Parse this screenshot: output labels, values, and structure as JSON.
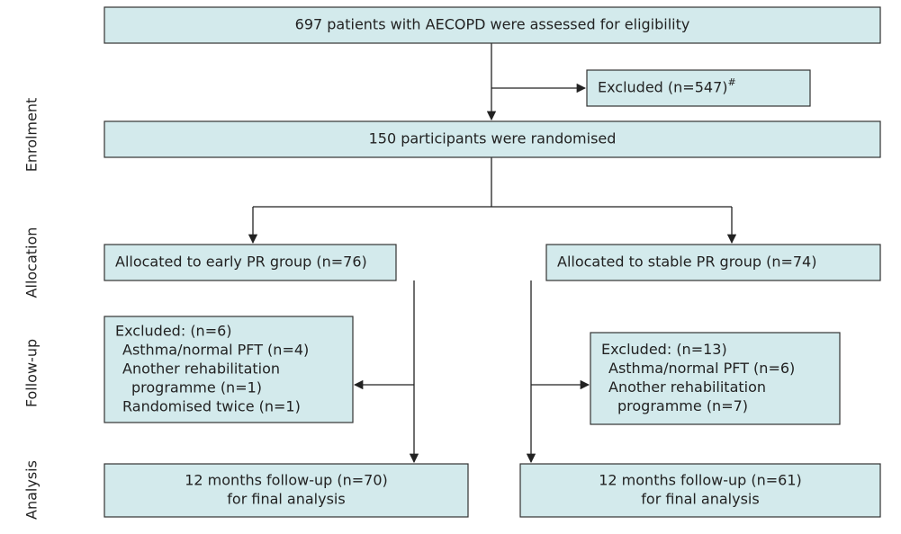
{
  "stages": [
    "Enrolment",
    "Allocation",
    "Follow-up",
    "Analysis"
  ],
  "nodes": [
    {
      "lines": [
        "697 patients with AECOPD were assessed for eligibility"
      ]
    },
    {
      "lines": [
        "Excluded (n=547)"
      ],
      "marker": "#"
    },
    {
      "lines": [
        "150 participants were randomised"
      ]
    },
    {
      "lines": [
        "Allocated to early PR group (n=76)"
      ]
    },
    {
      "lines": [
        "Allocated to stable PR group (n=74)"
      ]
    },
    {
      "lines": [
        "Excluded: (n=6)",
        "Asthma/normal PFT (n=4)",
        "Another rehabilitation",
        "programme (n=1)",
        "Randomised twice (n=1)"
      ]
    },
    {
      "lines": [
        "Excluded: (n=13)",
        "Asthma/normal PFT (n=6)",
        "Another rehabilitation",
        "programme (n=7)"
      ]
    },
    {
      "lines": [
        "12 months follow-up (n=70)",
        "for final analysis"
      ]
    },
    {
      "lines": [
        "12 months follow-up (n=61)",
        "for final analysis"
      ]
    }
  ]
}
